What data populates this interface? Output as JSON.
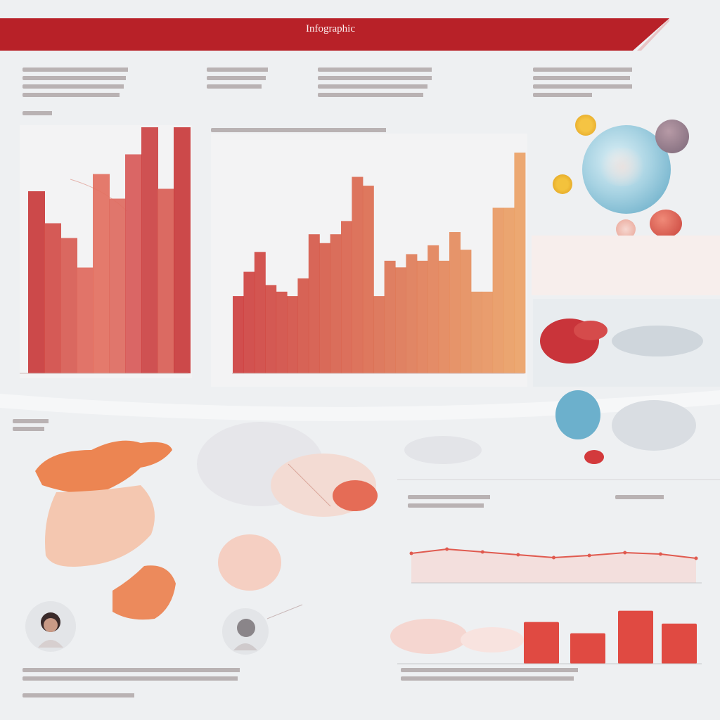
{
  "banner": {
    "title": "Infographic",
    "accent": "#c0272d"
  },
  "chart_data": [
    {
      "type": "bar",
      "categories": [
        "",
        "",
        "",
        "",
        "",
        "",
        "",
        "",
        "",
        ""
      ],
      "values": [
        74,
        61,
        55,
        43,
        81,
        71,
        89,
        100,
        75,
        100
      ],
      "ylim": [
        0,
        100
      ],
      "colors": [
        "#c93b3b",
        "#d34d48",
        "#d85c52",
        "#e0695c",
        "#e3705f",
        "#de6b60",
        "#d85a58",
        "#cc4343",
        "#d95e55",
        "#c93b3b"
      ]
    },
    {
      "type": "bar",
      "categories": [
        "",
        "",
        "",
        "",
        "",
        "",
        "",
        "",
        "",
        "",
        "",
        "",
        "",
        "",
        "",
        "",
        "",
        "",
        "",
        "",
        "",
        "",
        "",
        "",
        "",
        "",
        ""
      ],
      "values": [
        35,
        46,
        55,
        40,
        37,
        35,
        43,
        63,
        59,
        63,
        69,
        89,
        85,
        35,
        51,
        48,
        54,
        51,
        58,
        51,
        64,
        56,
        37,
        37,
        75,
        75,
        100
      ],
      "ylim": [
        0,
        100
      ]
    },
    {
      "type": "line",
      "x": [
        0,
        1,
        2,
        3,
        4,
        5,
        6,
        7,
        8
      ],
      "values": [
        4.2,
        4.8,
        4.4,
        4.0,
        3.6,
        3.9,
        4.3,
        4.1,
        3.5
      ],
      "ylim": [
        0,
        10
      ]
    },
    {
      "type": "bar",
      "categories": [
        "",
        "",
        "",
        ""
      ],
      "values": [
        52,
        38,
        66,
        50
      ],
      "ylim": [
        0,
        70
      ]
    }
  ],
  "colors": {
    "background": "#eef0f2",
    "primary_red": "#c0272d",
    "coral": "#e8735f",
    "peach": "#f0a07a",
    "teal": "#6fb4cf",
    "text_muted": "#8e7f7f"
  }
}
